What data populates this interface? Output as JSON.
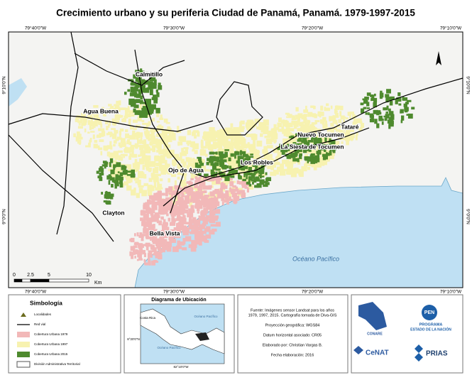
{
  "title": "Crecimiento urbano y su periferia Ciudad de Panamá, Panamá. 1979-1997-2015",
  "coordinates": {
    "top": [
      "79°40'0\"W",
      "79°30'0\"W",
      "79°20'0\"W",
      "79°10'0\"W"
    ],
    "bottom": [
      "79°40'0\"W",
      "79°30'0\"W",
      "79°20'0\"W",
      "79°10'0\"W"
    ],
    "left": [
      "9°10'0\"N",
      "9°0'0\"N"
    ],
    "right": [
      "9°10'0\"N",
      "9°0'0\"N"
    ]
  },
  "places": [
    "Calmitillo",
    "Agua Buena",
    "Tataré",
    "Nuevo Tocumen",
    "La Siesta de Tocumen",
    "Los Robles",
    "Ojo de Agua",
    "Clayton",
    "Bella Vista"
  ],
  "ocean_label": "Océano Pacífico",
  "scale_bar": {
    "labels": [
      "0",
      "2.5",
      "5",
      "10"
    ],
    "unit": "Km"
  },
  "legend": {
    "title": "Simbología",
    "items": [
      {
        "label": "Localidades",
        "color": "#6b6b1f"
      },
      {
        "label": "Red vial",
        "color": "#000000"
      },
      {
        "label": "Cobertura Urbana 1979",
        "color": "#f2b8b8"
      },
      {
        "label": "Cobertura Urbana 1997",
        "color": "#f7f2b0"
      },
      {
        "label": "Cobertura Urbana 2015",
        "color": "#4e8a2e"
      },
      {
        "label": "División Administrativa Territorial",
        "color": "#555555"
      }
    ]
  },
  "location_map": {
    "title": "Diagrama de Ubicación",
    "labels": [
      "Costa Rica",
      "Océano Pacífico",
      "Océano Pacífico"
    ],
    "lat": "8°20'0\"N",
    "lon": "82°10'0\"W"
  },
  "source": {
    "lines": [
      "Fuente: Imágenes sensor Landsat para los años",
      "1979, 1997, 2015. Cartografía tomada de Diva-GIS",
      "Proyección geográfica: WGS84",
      "Datum horizontal asociado: CR05",
      "Elaborado por: Christian Vargas B.",
      "Fecha elaboración: 2016"
    ]
  },
  "logos": [
    "CONARE",
    "PEN",
    "PROGRAMA",
    "ESTADO DE LA NACIÓN",
    "CeNAT",
    "PRIAS"
  ]
}
